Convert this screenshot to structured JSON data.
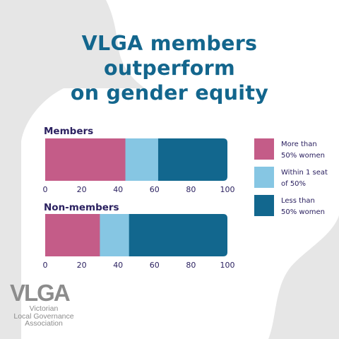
{
  "title_lines": [
    "VLGA members",
    "outperform",
    "on gender equity"
  ],
  "colors": {
    "more_than_50": "#c45c88",
    "within_1_seat": "#86c6e3",
    "less_than_50": "#12678e",
    "title": "#13668d",
    "axis_text": "#2b2160"
  },
  "chart_data": [
    {
      "type": "bar",
      "orientation": "horizontal",
      "stacked": true,
      "title": "Members",
      "categories": [
        "Members"
      ],
      "series": [
        {
          "name": "More than 50% women",
          "values": [
            44
          ]
        },
        {
          "name": "Within 1 seat of 50%",
          "values": [
            18
          ]
        },
        {
          "name": "Less than 50% women",
          "values": [
            38
          ]
        }
      ],
      "xlim": [
        0,
        100
      ],
      "xticks": [
        "0",
        "20",
        "40",
        "60",
        "80",
        "100"
      ],
      "grid": false,
      "legend_position": "right"
    },
    {
      "type": "bar",
      "orientation": "horizontal",
      "stacked": true,
      "title": "Non-members",
      "categories": [
        "Non-members"
      ],
      "series": [
        {
          "name": "More than 50% women",
          "values": [
            30
          ]
        },
        {
          "name": "Within 1 seat of 50%",
          "values": [
            16
          ]
        },
        {
          "name": "Less than 50% women",
          "values": [
            54
          ]
        }
      ],
      "xlim": [
        0,
        100
      ],
      "xticks": [
        "0",
        "20",
        "40",
        "60",
        "80",
        "100"
      ],
      "grid": false,
      "legend_position": "right"
    }
  ],
  "legend": [
    {
      "lines": [
        "More than",
        "50% women"
      ],
      "color": "#c45c88"
    },
    {
      "lines": [
        "Within 1 seat",
        "of 50%"
      ],
      "color": "#86c6e3"
    },
    {
      "lines": [
        "Less than",
        "50% women"
      ],
      "color": "#12678e"
    }
  ],
  "logo": {
    "mark": "VLGA",
    "sub_lines": [
      "Victorian",
      "Local Governance",
      "Association"
    ]
  }
}
